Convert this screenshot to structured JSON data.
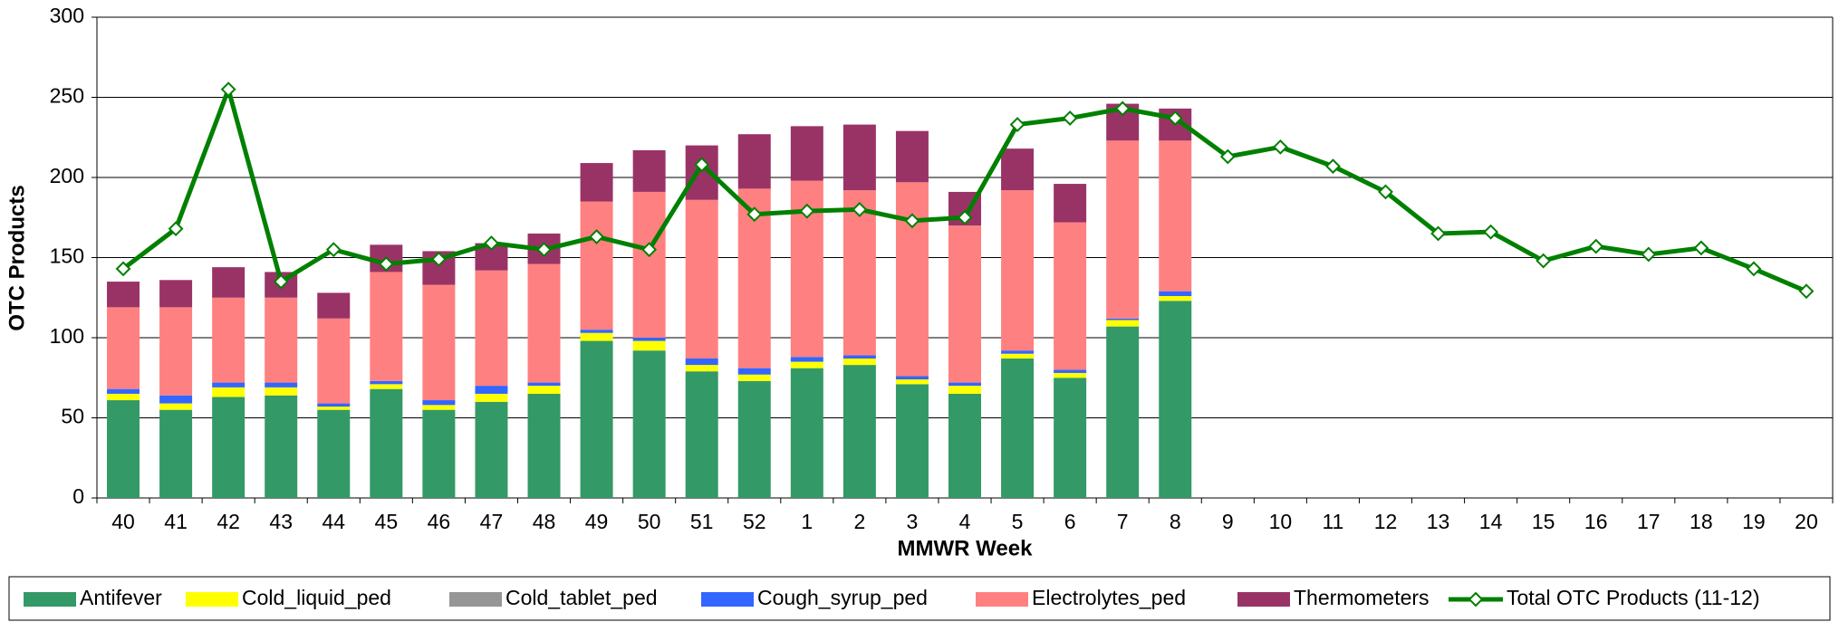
{
  "chart_data": {
    "type": "stacked-bar-line",
    "y_label": "OTC Products",
    "x_label": "MMWR Week",
    "categories": [
      "40",
      "41",
      "42",
      "43",
      "44",
      "45",
      "46",
      "47",
      "48",
      "49",
      "50",
      "51",
      "52",
      "1",
      "2",
      "3",
      "4",
      "5",
      "6",
      "7",
      "8",
      "9",
      "10",
      "11",
      "12",
      "13",
      "14",
      "15",
      "16",
      "17",
      "18",
      "19",
      "20"
    ],
    "ylim": [
      0,
      300
    ],
    "yticks": [
      0,
      50,
      100,
      150,
      200,
      250,
      300
    ],
    "grid": true,
    "legend": "bottom",
    "series": [
      {
        "name": "Antifever",
        "color": "#339966",
        "values": [
          61,
          55,
          63,
          64,
          55,
          68,
          55,
          60,
          65,
          98,
          92,
          79,
          73,
          81,
          83,
          71,
          65,
          87,
          75,
          107,
          123,
          null,
          null,
          null,
          null,
          null,
          null,
          null,
          null,
          null,
          null,
          null,
          null
        ]
      },
      {
        "name": "Cold_liquid_ped",
        "color": "#ffff00",
        "values": [
          4,
          4,
          6,
          5,
          2,
          3,
          3,
          5,
          5,
          5,
          6,
          4,
          4,
          4,
          4,
          3,
          5,
          3,
          3,
          4,
          3,
          null,
          null,
          null,
          null,
          null,
          null,
          null,
          null,
          null,
          null,
          null,
          null
        ]
      },
      {
        "name": "Cold_tablet_ped",
        "color": "#969696",
        "values": [
          0,
          0,
          0,
          0,
          0,
          0,
          0,
          0,
          0,
          0,
          0,
          0,
          0,
          0,
          0,
          0,
          0,
          0,
          0,
          0,
          0,
          null,
          null,
          null,
          null,
          null,
          null,
          null,
          null,
          null,
          null,
          null,
          null
        ]
      },
      {
        "name": "Cough_syrup_ped",
        "color": "#3366ff",
        "values": [
          3,
          5,
          3,
          3,
          2,
          2,
          3,
          5,
          2,
          2,
          2,
          4,
          4,
          3,
          2,
          2,
          2,
          2,
          2,
          1,
          3,
          null,
          null,
          null,
          null,
          null,
          null,
          null,
          null,
          null,
          null,
          null,
          null
        ]
      },
      {
        "name": "Electrolytes_ped",
        "color": "#ff8080",
        "values": [
          51,
          55,
          53,
          53,
          53,
          68,
          72,
          72,
          74,
          80,
          91,
          99,
          112,
          110,
          103,
          121,
          98,
          100,
          92,
          111,
          94,
          null,
          null,
          null,
          null,
          null,
          null,
          null,
          null,
          null,
          null,
          null,
          null
        ]
      },
      {
        "name": "Thermometers",
        "color": "#993366",
        "values": [
          16,
          17,
          19,
          16,
          16,
          17,
          21,
          17,
          19,
          24,
          26,
          34,
          34,
          34,
          41,
          32,
          21,
          26,
          24,
          23,
          20,
          null,
          null,
          null,
          null,
          null,
          null,
          null,
          null,
          null,
          null,
          null,
          null
        ]
      },
      {
        "name": "Total OTC Products (11-12)",
        "type": "line",
        "color": "#008000",
        "values": [
          143,
          168,
          255,
          135,
          155,
          146,
          149,
          159,
          155,
          163,
          155,
          208,
          177,
          179,
          180,
          173,
          175,
          233,
          237,
          243,
          237,
          213,
          219,
          207,
          191,
          165,
          166,
          148,
          157,
          152,
          156,
          143,
          129
        ]
      }
    ]
  }
}
